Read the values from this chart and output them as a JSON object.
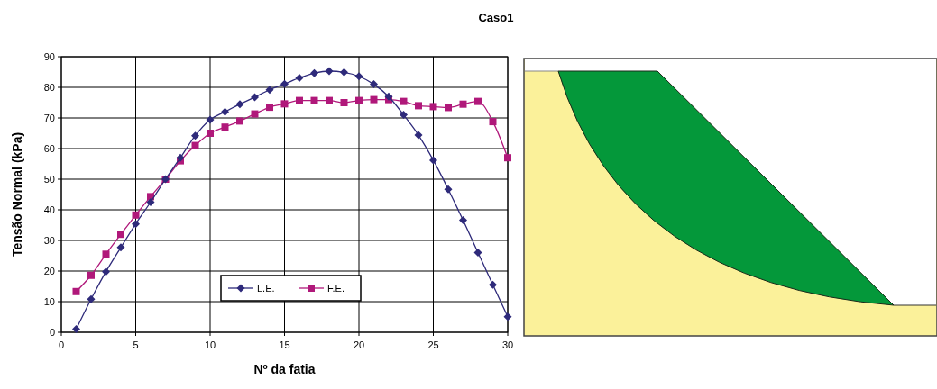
{
  "chart_data": {
    "type": "line",
    "title": "Caso1",
    "xlabel": "Nº da fatia",
    "ylabel": "Tensão Normal (kPa)",
    "x": [
      1,
      2,
      3,
      4,
      5,
      6,
      7,
      8,
      9,
      10,
      11,
      12,
      13,
      14,
      15,
      16,
      17,
      18,
      19,
      20,
      21,
      22,
      23,
      24,
      25,
      26,
      27,
      28,
      29,
      30
    ],
    "series": [
      {
        "name": "L.E.",
        "color": "#2e2a7a",
        "marker": "diamond",
        "values": [
          1,
          10.8,
          19.8,
          27.7,
          35.4,
          42.5,
          50,
          57,
          64.2,
          69.4,
          72,
          74.5,
          76.8,
          79.2,
          81.1,
          83.1,
          84.6,
          85.3,
          84.9,
          83.6,
          81,
          77,
          71,
          64.4,
          56.2,
          46.7,
          36.6,
          26,
          15.5,
          5.1
        ]
      },
      {
        "name": "F.E.",
        "color": "#b0187a",
        "marker": "square",
        "values": [
          13.3,
          18.6,
          25.5,
          32,
          38.3,
          44.3,
          50,
          56,
          61,
          65,
          67,
          69,
          71.3,
          73.5,
          74.6,
          75.7,
          75.7,
          75.7,
          75,
          75.7,
          76,
          76,
          75.4,
          74,
          73.7,
          73.4,
          74.5,
          75.4,
          68.8,
          57
        ]
      }
    ],
    "xlim": [
      0,
      30
    ],
    "xticks": [
      0,
      5,
      10,
      15,
      20,
      25,
      30
    ],
    "ylim": [
      0,
      90
    ],
    "yticks": [
      0,
      10,
      20,
      30,
      40,
      50,
      60,
      70,
      80,
      90
    ],
    "grid": true,
    "legend": "bottom",
    "line_style": "solid"
  }
}
